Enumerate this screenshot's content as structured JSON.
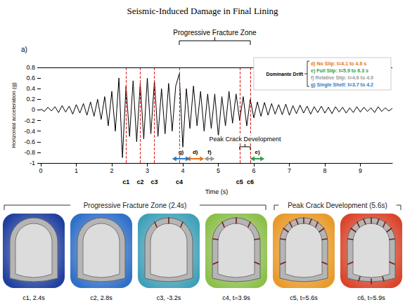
{
  "chart_data": {
    "type": "line",
    "title": "Seismic-Induced Damage in Final Lining",
    "panel_label": "a)",
    "x_label": "Time (s)",
    "y_label": "Horizontal acceleration (g)",
    "x": [
      0,
      0.1,
      0.2,
      0.3,
      0.4,
      0.5,
      0.6,
      0.7,
      0.8,
      0.9,
      1,
      1.1,
      1.2,
      1.3,
      1.4,
      1.5,
      1.6,
      1.7,
      1.8,
      1.9,
      2,
      2.1,
      2.2,
      2.3,
      2.4,
      2.5,
      2.6,
      2.7,
      2.8,
      2.9,
      3,
      3.1,
      3.2,
      3.3,
      3.4,
      3.5,
      3.6,
      3.7,
      3.8,
      3.9,
      4,
      4.1,
      4.2,
      4.3,
      4.4,
      4.5,
      4.6,
      4.7,
      4.8,
      4.9,
      5,
      5.1,
      5.2,
      5.3,
      5.4,
      5.5,
      5.6,
      5.7,
      5.8,
      5.9,
      6,
      6.1,
      6.2,
      6.3,
      6.4,
      6.5,
      6.6,
      6.7,
      6.8,
      6.9,
      7,
      7.1,
      7.2,
      7.3,
      7.4,
      7.5,
      7.6,
      7.7,
      7.8,
      7.9,
      8,
      8.1,
      8.2,
      8.3,
      8.4,
      8.5,
      8.6,
      8.7,
      8.8,
      8.9,
      9,
      9.1,
      9.2,
      9.3,
      9.4,
      9.5,
      9.6,
      9.7,
      9.8,
      9.9
    ],
    "values": [
      0.02,
      -0.03,
      0.05,
      -0.02,
      0.06,
      -0.05,
      0.08,
      -0.04,
      0.07,
      -0.08,
      0.1,
      -0.06,
      0.12,
      -0.1,
      0.15,
      -0.12,
      0.2,
      -0.18,
      0.25,
      -0.3,
      0.35,
      -0.4,
      0.6,
      -0.9,
      0.45,
      -0.5,
      0.55,
      -0.6,
      0.5,
      -0.55,
      0.6,
      -0.45,
      0.55,
      -0.5,
      0.4,
      -0.45,
      0.5,
      -0.4,
      0.45,
      0.68,
      -0.7,
      0.4,
      -0.35,
      0.45,
      -0.3,
      0.35,
      -0.4,
      0.3,
      -0.35,
      0.3,
      -0.5,
      0.25,
      -0.3,
      0.35,
      -0.25,
      0.3,
      -0.2,
      0.25,
      -0.3,
      0.2,
      -0.15,
      0.15,
      -0.12,
      0.14,
      -0.1,
      0.12,
      -0.08,
      0.1,
      -0.09,
      0.11,
      -0.1,
      0.08,
      -0.07,
      0.09,
      -0.06,
      0.07,
      -0.08,
      0.06,
      -0.05,
      0.07,
      -0.06,
      0.05,
      -0.07,
      0.06,
      -0.04,
      0.05,
      -0.06,
      0.04,
      -0.05,
      0.06,
      -0.04,
      0.05,
      -0.03,
      0.04,
      -0.05,
      0.06,
      -0.03,
      0.04,
      -0.02,
      0.03
    ],
    "color": "#000000",
    "xlim": [
      0,
      9.9
    ],
    "xticks": [
      0,
      1,
      2,
      3,
      4,
      5,
      6,
      7,
      8,
      9
    ],
    "ylim": [
      -1,
      0.8
    ],
    "yticks": [
      -1,
      -0.8,
      -0.6,
      -0.4,
      -0.2,
      0,
      0.2,
      0.4,
      0.6,
      0.8
    ],
    "grid": false,
    "markers": [
      {
        "label": "c1",
        "x": 2.4
      },
      {
        "label": "c2",
        "x": 2.8
      },
      {
        "label": "c3",
        "x": 3.2
      },
      {
        "label": "c4",
        "x": 3.9
      },
      {
        "label": "c5",
        "x": 5.6
      },
      {
        "label": "c6",
        "x": 5.9
      }
    ],
    "drift_label": "Dominante Drift",
    "intervals": [
      {
        "label": "d)",
        "text": "No Slip: t=4.1 to 4.6 s",
        "start": 4.1,
        "end": 4.6,
        "color": "#e8731c"
      },
      {
        "label": "e)",
        "text": "Full Slip: t=5.9 to 6.3 s",
        "start": 5.9,
        "end": 6.3,
        "color": "#2e9e4f"
      },
      {
        "label": "f)",
        "text": "Relative Slip: t=4.6 to 4.9",
        "start": 4.6,
        "end": 4.9,
        "color": "#999999"
      },
      {
        "label": "g)",
        "text": "Single Shell: t=3.7 to 4.2",
        "start": 3.7,
        "end": 4.2,
        "color": "#2b7bbf"
      }
    ],
    "brackets": [
      {
        "text": "Progressive Fracture Zone",
        "start": 3.9,
        "end": 5.9
      },
      {
        "text": "Peak Crack Development",
        "start": 5.6,
        "end": 5.9
      }
    ]
  },
  "damage_panel": {
    "groups": [
      {
        "title": "Progressive Fracture Zone (2.4s)",
        "snapshots": [
          {
            "label": "c1, 2.4s",
            "color": "#1f3f9f"
          },
          {
            "label": "c2, 2.8s",
            "color": "#2f6fc8"
          },
          {
            "label": "c3, -3.2s",
            "color": "#3fa0b8"
          },
          {
            "label": "c4, t=3.9s",
            "color": "#8cbf4a"
          }
        ]
      },
      {
        "title": "Peak Crack Development (5.6s)",
        "snapshots": [
          {
            "label": "c5, t=5.6s",
            "color": "#e89a2a"
          },
          {
            "label": "c6, t=5.9s",
            "color": "#d9442a"
          }
        ]
      }
    ]
  }
}
